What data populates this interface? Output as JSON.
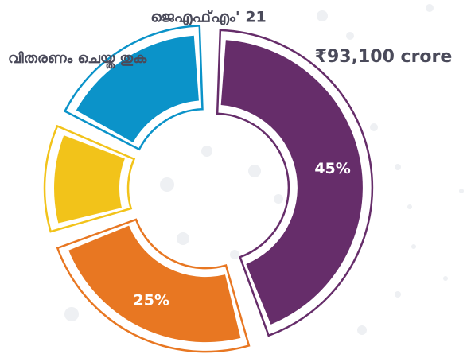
{
  "chart_data": {
    "type": "donut",
    "title": "ജെഎഫ്എം' 21",
    "subtitle": "വിതരണം ചെയ്ത തുക",
    "total_label": "₹93,100 crore",
    "categories": [
      null,
      null,
      null,
      null
    ],
    "values": [
      45,
      25,
      12,
      18
    ],
    "value_labels": [
      "45%",
      "25%",
      null,
      null
    ],
    "colors": [
      "#662d6a",
      "#e87722",
      "#f2c31a",
      "#0b93c9"
    ]
  }
}
